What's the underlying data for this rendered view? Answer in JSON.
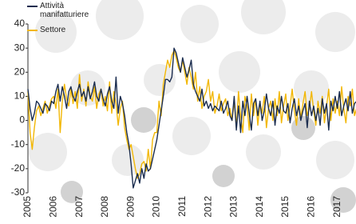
{
  "chart_data": {
    "type": "line",
    "categories": [
      "2005",
      null,
      null,
      null,
      null,
      null,
      null,
      null,
      null,
      null,
      null,
      null,
      "2006",
      null,
      null,
      null,
      null,
      null,
      null,
      null,
      null,
      null,
      null,
      null,
      "2007",
      null,
      null,
      null,
      null,
      null,
      null,
      null,
      null,
      null,
      null,
      null,
      "2008",
      null,
      null,
      null,
      null,
      null,
      null,
      null,
      null,
      null,
      null,
      null,
      "2009",
      null,
      null,
      null,
      null,
      null,
      null,
      null,
      null,
      null,
      null,
      null,
      "2010",
      null,
      null,
      null,
      null,
      null,
      null,
      null,
      null,
      null,
      null,
      null,
      "2011",
      null,
      null,
      null,
      null,
      null,
      null,
      null,
      null,
      null,
      null,
      null,
      "2012",
      null,
      null,
      null,
      null,
      null,
      null,
      null,
      null,
      null,
      null,
      null,
      "2013",
      null,
      null,
      null,
      null,
      null,
      null,
      null,
      null,
      null,
      null,
      null,
      "2014",
      null,
      null,
      null,
      null,
      null,
      null,
      null,
      null,
      null,
      null,
      null,
      "2015",
      null,
      null,
      null,
      null,
      null,
      null,
      null,
      null,
      null,
      null,
      null,
      "2016",
      null,
      null,
      null,
      null,
      null,
      null,
      null,
      null,
      null,
      null,
      null,
      "2017",
      null,
      null,
      null,
      null,
      null,
      null,
      null,
      null,
      null
    ],
    "series": [
      {
        "name": "Attività manifatturiere",
        "color": "#1b2d4f",
        "values": [
          13,
          5,
          0,
          3,
          8,
          7,
          5,
          3,
          7,
          6,
          4,
          8,
          7,
          12,
          15,
          8,
          14,
          10,
          5,
          12,
          14,
          10,
          8,
          12,
          15,
          10,
          12,
          8,
          14,
          9,
          12,
          16,
          10,
          8,
          13,
          9,
          6,
          11,
          14,
          8,
          5,
          18,
          3,
          10,
          7,
          2,
          -5,
          -10,
          -18,
          -28,
          -25,
          -22,
          -26,
          -20,
          -24,
          -18,
          -21,
          -20,
          -16,
          -12,
          -8,
          -2,
          4,
          10,
          17,
          17,
          16,
          18,
          30,
          28,
          24,
          20,
          26,
          22,
          18,
          21,
          25,
          15,
          12,
          10,
          8,
          13,
          6,
          8,
          5,
          7,
          4,
          6,
          5,
          4,
          8,
          3,
          5,
          8,
          2,
          0,
          10,
          -4,
          6,
          -5,
          8,
          2,
          10,
          3,
          -4,
          7,
          9,
          2,
          8,
          0,
          4,
          11,
          5,
          2,
          8,
          -2,
          6,
          3,
          10,
          4,
          3,
          7,
          -1,
          5,
          9,
          2,
          6,
          0,
          4,
          7,
          -3,
          8,
          2,
          6,
          0,
          5,
          -2,
          9,
          3,
          7,
          -4,
          8,
          4,
          10,
          5,
          12,
          2,
          6,
          9,
          4,
          12,
          3,
          7,
          8
        ]
      },
      {
        "name": "Settore",
        "color": "#f2b705",
        "values": [
          12,
          -5,
          -12,
          -3,
          4,
          6,
          2,
          5,
          8,
          3,
          6,
          9,
          10,
          5,
          13,
          -5,
          8,
          15,
          9,
          6,
          13,
          7,
          12,
          5,
          19,
          8,
          13,
          6,
          16,
          10,
          8,
          14,
          5,
          11,
          13,
          6,
          10,
          4,
          16,
          3,
          12,
          7,
          -2,
          5,
          8,
          -3,
          -8,
          -12,
          -10,
          -15,
          -20,
          -24,
          -22,
          -18,
          -17,
          -21,
          -12,
          -20,
          -8,
          -5,
          -5,
          8,
          2,
          15,
          20,
          25,
          22,
          27,
          29,
          26,
          22,
          20,
          25,
          20,
          15,
          22,
          18,
          13,
          20,
          8,
          14,
          5,
          10,
          12,
          17,
          8,
          12,
          3,
          6,
          11,
          4,
          7,
          9,
          2,
          5,
          0,
          8,
          -3,
          12,
          2,
          -5,
          10,
          6,
          -4,
          11,
          2,
          9,
          -2,
          7,
          3,
          10,
          -3,
          5,
          8,
          0,
          9,
          2,
          12,
          -1,
          6,
          11,
          0,
          6,
          13,
          4,
          -2,
          9,
          1,
          7,
          12,
          2,
          5,
          12,
          4,
          -2,
          8,
          3,
          10,
          -1,
          6,
          13,
          0,
          9,
          3,
          8,
          2,
          14,
          5,
          -1,
          10,
          6,
          13,
          2,
          5
        ]
      }
    ],
    "ylim": [
      -30,
      40
    ],
    "yticks": [
      -30,
      -20,
      -10,
      0,
      10,
      20,
      30,
      40
    ],
    "grid": false
  }
}
